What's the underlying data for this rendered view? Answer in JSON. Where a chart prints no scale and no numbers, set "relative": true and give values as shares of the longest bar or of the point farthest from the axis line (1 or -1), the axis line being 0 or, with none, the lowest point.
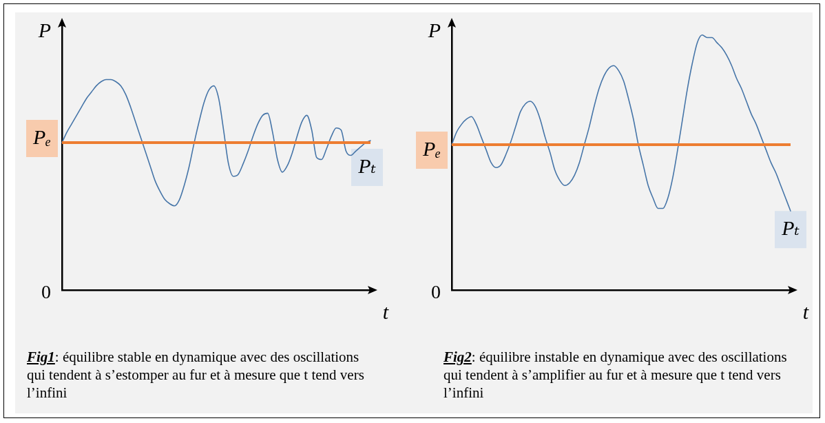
{
  "chart_data": [
    {
      "type": "line",
      "relative": true,
      "xlabel": "t",
      "ylabel": "P",
      "tick_labels": false,
      "marker": "none",
      "categories": [
        null,
        null,
        null,
        null,
        null,
        null,
        null,
        null,
        null,
        null,
        null,
        null,
        null,
        null,
        null,
        null,
        null,
        null,
        null,
        null,
        null,
        null,
        null,
        null,
        null,
        null,
        null,
        null,
        null,
        null,
        null,
        null,
        null,
        null,
        null,
        null,
        null,
        null,
        null,
        null,
        null,
        null,
        null,
        null,
        null,
        null,
        null,
        null,
        null,
        null,
        null,
        null,
        null,
        null,
        null,
        null,
        null,
        null,
        null,
        null,
        null,
        null,
        null,
        null
      ],
      "series": [
        {
          "name": "Pₜ",
          "color": "#4675a8",
          "values": [
            0.7,
            0.75,
            0.79,
            0.83,
            0.87,
            0.91,
            0.94,
            0.97,
            0.99,
            1.0,
            1.0,
            0.99,
            0.97,
            0.93,
            0.87,
            0.8,
            0.73,
            0.66,
            0.59,
            0.52,
            0.47,
            0.43,
            0.41,
            0.4,
            0.43,
            0.5,
            0.59,
            0.7,
            0.8,
            0.89,
            0.95,
            0.97,
            0.91,
            0.76,
            0.6,
            0.54,
            0.55,
            0.6,
            0.66,
            0.73,
            0.79,
            0.83,
            0.84,
            0.75,
            0.62,
            0.56,
            0.59,
            0.65,
            0.73,
            0.8,
            0.83,
            0.76,
            0.63,
            0.62,
            0.67,
            0.73,
            0.77,
            0.76,
            0.66,
            0.64,
            0.66,
            0.68,
            0.7,
            0.71
          ]
        }
      ],
      "ref_lines": [
        {
          "axis": "y",
          "value": 0.7,
          "label": "Pₑ",
          "color": "#ed7d31"
        }
      ],
      "annotations": [
        "0",
        "Fig1: équilibre stable en dynamique avec des oscillations qui tendent à s’estomper au fur et à mesure que t tend vers l’infini"
      ]
    },
    {
      "type": "line",
      "relative": true,
      "xlabel": "t",
      "ylabel": "P",
      "tick_labels": false,
      "marker": "none",
      "categories": [
        null,
        null,
        null,
        null,
        null,
        null,
        null,
        null,
        null,
        null,
        null,
        null,
        null,
        null,
        null,
        null,
        null,
        null,
        null,
        null,
        null,
        null,
        null,
        null,
        null,
        null,
        null,
        null,
        null,
        null,
        null,
        null,
        null,
        null,
        null,
        null,
        null,
        null,
        null,
        null,
        null,
        null,
        null,
        null,
        null,
        null,
        null,
        null,
        null,
        null,
        null,
        null,
        null,
        null,
        null,
        null,
        null,
        null,
        null,
        null,
        null,
        null,
        null,
        null,
        null,
        null,
        null,
        null,
        null,
        null
      ],
      "series": [
        {
          "name": "Pₜ",
          "color": "#4675a8",
          "values": [
            0.57,
            0.62,
            0.65,
            0.67,
            0.68,
            0.65,
            0.6,
            0.55,
            0.5,
            0.48,
            0.49,
            0.53,
            0.58,
            0.64,
            0.7,
            0.73,
            0.74,
            0.72,
            0.67,
            0.6,
            0.54,
            0.47,
            0.43,
            0.41,
            0.42,
            0.45,
            0.5,
            0.57,
            0.64,
            0.72,
            0.79,
            0.84,
            0.87,
            0.88,
            0.86,
            0.82,
            0.75,
            0.67,
            0.57,
            0.49,
            0.41,
            0.36,
            0.32,
            0.32,
            0.36,
            0.44,
            0.55,
            0.67,
            0.79,
            0.89,
            0.97,
            1.0,
            0.99,
            0.99,
            0.97,
            0.95,
            0.92,
            0.88,
            0.83,
            0.79,
            0.74,
            0.69,
            0.65,
            0.6,
            0.55,
            0.5,
            0.46,
            0.41,
            0.36,
            0.31
          ]
        }
      ],
      "ref_lines": [
        {
          "axis": "y",
          "value": 0.57,
          "label": "Pₑ",
          "color": "#ed7d31"
        }
      ],
      "annotations": [
        "0",
        "Fig2: équilibre instable en dynamique avec des oscillations qui tendent à s’amplifier au fur et à mesure que t tend vers l’infini"
      ]
    }
  ]
}
